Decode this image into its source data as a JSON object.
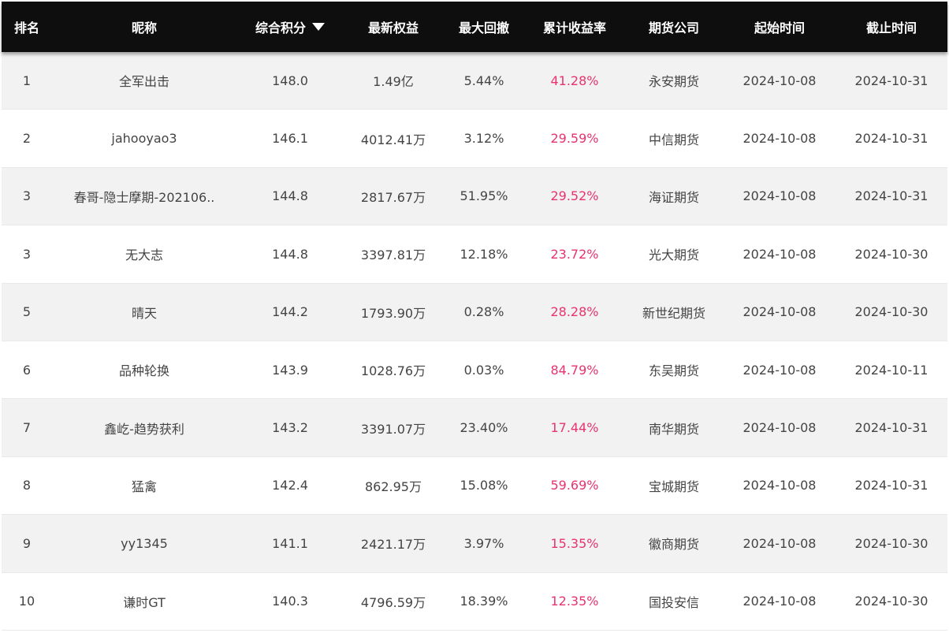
{
  "header": {
    "rank": "排名",
    "nickname": "昵称",
    "score": "综合积分",
    "equity": "最新权益",
    "max_drawdown": "最大回撤",
    "cum_return": "累计收益率",
    "company": "期货公司",
    "start": "起始时间",
    "end": "截止时间"
  },
  "colors": {
    "header_bg": "#0e0e0e",
    "return_color": "#e8336e",
    "odd_row_bg": "#f2f2f2"
  },
  "rows": [
    {
      "rank": "1",
      "nickname": "全军出击",
      "score": "148.0",
      "equity": "1.49亿",
      "max_drawdown": "5.44%",
      "cum_return": "41.28%",
      "company": "永安期货",
      "start": "2024-10-08",
      "end": "2024-10-31"
    },
    {
      "rank": "2",
      "nickname": "jahooyao3",
      "score": "146.1",
      "equity": "4012.41万",
      "max_drawdown": "3.12%",
      "cum_return": "29.59%",
      "company": "中信期货",
      "start": "2024-10-08",
      "end": "2024-10-31"
    },
    {
      "rank": "3",
      "nickname": "春哥-隐士摩期-202106..",
      "score": "144.8",
      "equity": "2817.67万",
      "max_drawdown": "51.95%",
      "cum_return": "29.52%",
      "company": "海证期货",
      "start": "2024-10-08",
      "end": "2024-10-31"
    },
    {
      "rank": "3",
      "nickname": "无大志",
      "score": "144.8",
      "equity": "3397.81万",
      "max_drawdown": "12.18%",
      "cum_return": "23.72%",
      "company": "光大期货",
      "start": "2024-10-08",
      "end": "2024-10-30"
    },
    {
      "rank": "5",
      "nickname": "晴天",
      "score": "144.2",
      "equity": "1793.90万",
      "max_drawdown": "0.28%",
      "cum_return": "28.28%",
      "company": "新世纪期货",
      "start": "2024-10-08",
      "end": "2024-10-30"
    },
    {
      "rank": "6",
      "nickname": "品种轮换",
      "score": "143.9",
      "equity": "1028.76万",
      "max_drawdown": "0.03%",
      "cum_return": "84.79%",
      "company": "东吴期货",
      "start": "2024-10-08",
      "end": "2024-10-11"
    },
    {
      "rank": "7",
      "nickname": "鑫屹-趋势获利",
      "score": "143.2",
      "equity": "3391.07万",
      "max_drawdown": "23.40%",
      "cum_return": "17.44%",
      "company": "南华期货",
      "start": "2024-10-08",
      "end": "2024-10-31"
    },
    {
      "rank": "8",
      "nickname": "猛禽",
      "score": "142.4",
      "equity": "862.95万",
      "max_drawdown": "15.08%",
      "cum_return": "59.69%",
      "company": "宝城期货",
      "start": "2024-10-08",
      "end": "2024-10-31"
    },
    {
      "rank": "9",
      "nickname": "yy1345",
      "score": "141.1",
      "equity": "2421.17万",
      "max_drawdown": "3.97%",
      "cum_return": "15.35%",
      "company": "徽商期货",
      "start": "2024-10-08",
      "end": "2024-10-30"
    },
    {
      "rank": "10",
      "nickname": "谦时GT",
      "score": "140.3",
      "equity": "4796.59万",
      "max_drawdown": "18.39%",
      "cum_return": "12.35%",
      "company": "国投安信",
      "start": "2024-10-08",
      "end": "2024-10-30"
    }
  ]
}
